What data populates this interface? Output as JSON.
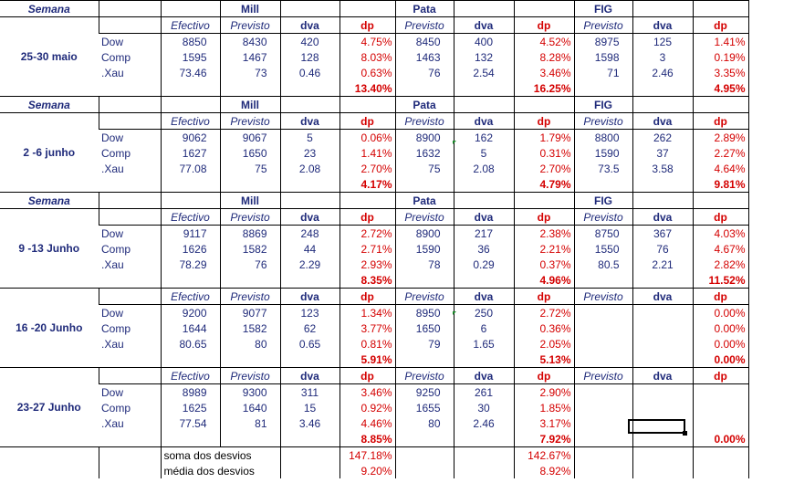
{
  "headers": {
    "semana": "Semana",
    "efectivo": "Efectivo",
    "previsto": "Previsto",
    "dva": "dva",
    "dp": "dp",
    "groups": [
      "Mill",
      "Pata",
      "FIG"
    ]
  },
  "weeks": [
    {
      "label": "25-30 maio",
      "rows": [
        {
          "name": "Dow",
          "efectivo": "8850",
          "mill": [
            "8430",
            "420",
            "4.75%"
          ],
          "pata": [
            "8450",
            "400",
            "4.52%"
          ],
          "fig": [
            "8975",
            "125",
            "1.41%"
          ]
        },
        {
          "name": "Comp",
          "efectivo": "1595",
          "mill": [
            "1467",
            "128",
            "8.03%"
          ],
          "pata": [
            "1463",
            "132",
            "8.28%"
          ],
          "fig": [
            "1598",
            "3",
            "0.19%"
          ]
        },
        {
          "name": ".Xau",
          "efectivo": "73.46",
          "mill": [
            "73",
            "0.46",
            "0.63%"
          ],
          "pata": [
            "76",
            "2.54",
            "3.46%"
          ],
          "fig": [
            "71",
            "2.46",
            "3.35%"
          ]
        }
      ],
      "totals": {
        "mill": "13.40%",
        "pata": "16.25%",
        "fig": "4.95%"
      }
    },
    {
      "label": "2 -6 junho",
      "rows": [
        {
          "name": "Dow",
          "efectivo": "9062",
          "mill": [
            "9067",
            "5",
            "0.06%"
          ],
          "pata": [
            "8900",
            "162",
            "1.79%"
          ],
          "fig": [
            "8800",
            "262",
            "2.89%"
          ]
        },
        {
          "name": "Comp",
          "efectivo": "1627",
          "mill": [
            "1650",
            "23",
            "1.41%"
          ],
          "pata": [
            "1632",
            "5",
            "0.31%"
          ],
          "fig": [
            "1590",
            "37",
            "2.27%"
          ]
        },
        {
          "name": ".Xau",
          "efectivo": "77.08",
          "mill": [
            "75",
            "2.08",
            "2.70%"
          ],
          "pata": [
            "75",
            "2.08",
            "2.70%"
          ],
          "fig": [
            "73.5",
            "3.58",
            "4.64%"
          ]
        }
      ],
      "totals": {
        "mill": "4.17%",
        "pata": "4.79%",
        "fig": "9.81%"
      }
    },
    {
      "label": "9 -13 Junho",
      "rows": [
        {
          "name": "Dow",
          "efectivo": "9117",
          "mill": [
            "8869",
            "248",
            "2.72%"
          ],
          "pata": [
            "8900",
            "217",
            "2.38%"
          ],
          "fig": [
            "8750",
            "367",
            "4.03%"
          ]
        },
        {
          "name": "Comp",
          "efectivo": "1626",
          "mill": [
            "1582",
            "44",
            "2.71%"
          ],
          "pata": [
            "1590",
            "36",
            "2.21%"
          ],
          "fig": [
            "1550",
            "76",
            "4.67%"
          ]
        },
        {
          "name": ".Xau",
          "efectivo": "78.29",
          "mill": [
            "76",
            "2.29",
            "2.93%"
          ],
          "pata": [
            "78",
            "0.29",
            "0.37%"
          ],
          "fig": [
            "80.5",
            "2.21",
            "2.82%"
          ]
        }
      ],
      "totals": {
        "mill": "8.35%",
        "pata": "4.96%",
        "fig": "11.52%"
      }
    },
    {
      "label": "16 -20 Junho",
      "rows": [
        {
          "name": "Dow",
          "efectivo": "9200",
          "mill": [
            "9077",
            "123",
            "1.34%"
          ],
          "pata": [
            "8950",
            "250",
            "2.72%"
          ],
          "fig": [
            "",
            "",
            "0.00%"
          ]
        },
        {
          "name": "Comp",
          "efectivo": "1644",
          "mill": [
            "1582",
            "62",
            "3.77%"
          ],
          "pata": [
            "1650",
            "6",
            "0.36%"
          ],
          "fig": [
            "",
            "",
            "0.00%"
          ]
        },
        {
          "name": ".Xau",
          "efectivo": "80.65",
          "mill": [
            "80",
            "0.65",
            "0.81%"
          ],
          "pata": [
            "79",
            "1.65",
            "2.05%"
          ],
          "fig": [
            "",
            "",
            "0.00%"
          ]
        }
      ],
      "totals": {
        "mill": "5.91%",
        "pata": "5.13%",
        "fig": "0.00%"
      }
    },
    {
      "label": "23-27 Junho",
      "rows": [
        {
          "name": "Dow",
          "efectivo": "8989",
          "mill": [
            "9300",
            "311",
            "3.46%"
          ],
          "pata": [
            "9250",
            "261",
            "2.90%"
          ],
          "fig": [
            "",
            "",
            ""
          ]
        },
        {
          "name": "Comp",
          "efectivo": "1625",
          "mill": [
            "1640",
            "15",
            "0.92%"
          ],
          "pata": [
            "1655",
            "30",
            "1.85%"
          ],
          "fig": [
            "",
            "",
            ""
          ]
        },
        {
          "name": ".Xau",
          "efectivo": "77.54",
          "mill": [
            "81",
            "3.46",
            "4.46%"
          ],
          "pata": [
            "80",
            "2.46",
            "3.17%"
          ],
          "fig": [
            "",
            "",
            ""
          ]
        }
      ],
      "totals": {
        "mill": "8.85%",
        "pata": "7.92%",
        "fig": "0.00%"
      }
    }
  ],
  "summary": {
    "soma_label": "soma dos desvios",
    "soma_mill": "147.18%",
    "soma_pata": "142.67%",
    "media_label": "média dos desvios",
    "media_mill": "9.20%",
    "media_pata": "8.92%"
  },
  "colors": {
    "text": "#1f2a7a",
    "percent": "#d40000",
    "grid": "#000000"
  }
}
